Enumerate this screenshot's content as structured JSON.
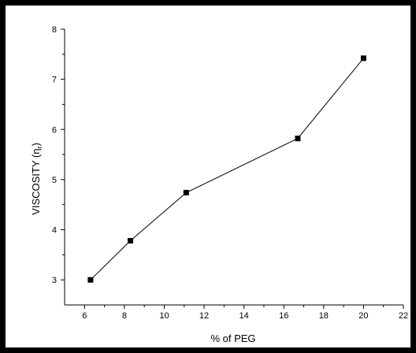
{
  "chart_data": {
    "type": "line",
    "title": "",
    "xlabel": "% of PEG",
    "ylabel": "VISCOSITY (η",
    "ylabel_subscript": "r",
    "ylabel_close": ")",
    "x": [
      6.3,
      8.3,
      11.1,
      16.7,
      20.0
    ],
    "y": [
      3.0,
      3.78,
      4.74,
      5.82,
      7.42
    ],
    "xlim": [
      5,
      22
    ],
    "ylim": [
      2.5,
      8
    ],
    "xticks": [
      6,
      8,
      10,
      12,
      14,
      16,
      18,
      20,
      22
    ],
    "yticks": [
      3,
      4,
      5,
      6,
      7,
      8
    ],
    "marker": "square",
    "line_color": "#000000",
    "grid": false,
    "legend": "none"
  }
}
